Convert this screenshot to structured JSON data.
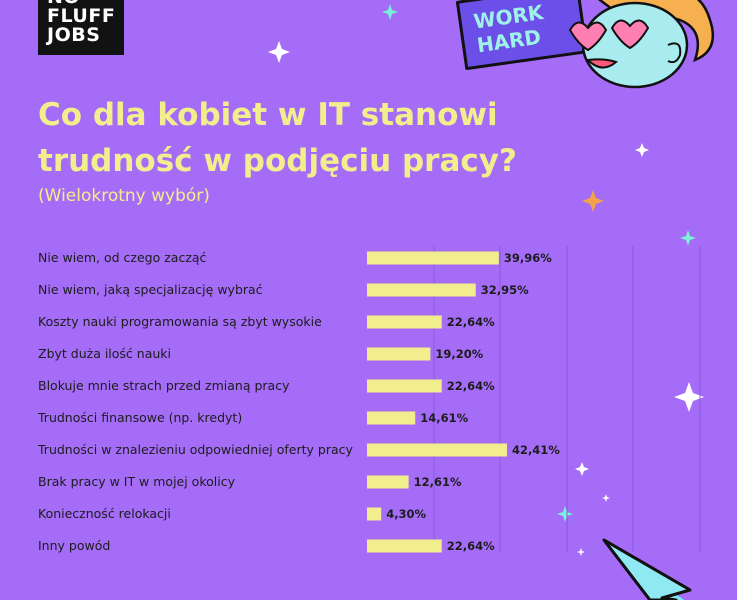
{
  "logo": {
    "line1": "NO",
    "line2": "FLUFF",
    "line3": "JOBS"
  },
  "badge": {
    "line1": "WORK",
    "line2": "HARD"
  },
  "colors": {
    "background": "#a56cf7",
    "bar": "#f3ee8d",
    "title": "#f3ee8d",
    "gridline": "#8c5ad8"
  },
  "chart_data": {
    "type": "bar",
    "orientation": "horizontal",
    "title": "Co dla kobiet w IT stanowi trudność w podjęciu pracy?",
    "subtitle": "(Wielokrotny wybór)",
    "categories": [
      "Nie wiem, od czego zacząć",
      "Nie wiem, jaką specjalizację wybrać",
      "Koszty nauki programowania są zbyt wysokie",
      "Zbyt duża ilość nauki",
      "Blokuje mnie strach przed zmianą pracy",
      "Trudności finansowe (np. kredyt)",
      "Trudności w znalezieniu odpowiedniej oferty pracy",
      "Brak pracy w IT w mojej okolicy",
      "Konieczność relokacji",
      "Inny powód"
    ],
    "values": [
      39.96,
      32.95,
      22.64,
      19.2,
      22.64,
      14.61,
      42.41,
      12.61,
      4.3,
      22.64
    ],
    "value_labels": [
      "39,96%",
      "32,95%",
      "22,64%",
      "19,20%",
      "22,64%",
      "14,61%",
      "42,41%",
      "12,61%",
      "4,30%",
      "22,64%"
    ],
    "xlim": [
      0,
      100
    ],
    "grid": true,
    "legend": "none"
  }
}
